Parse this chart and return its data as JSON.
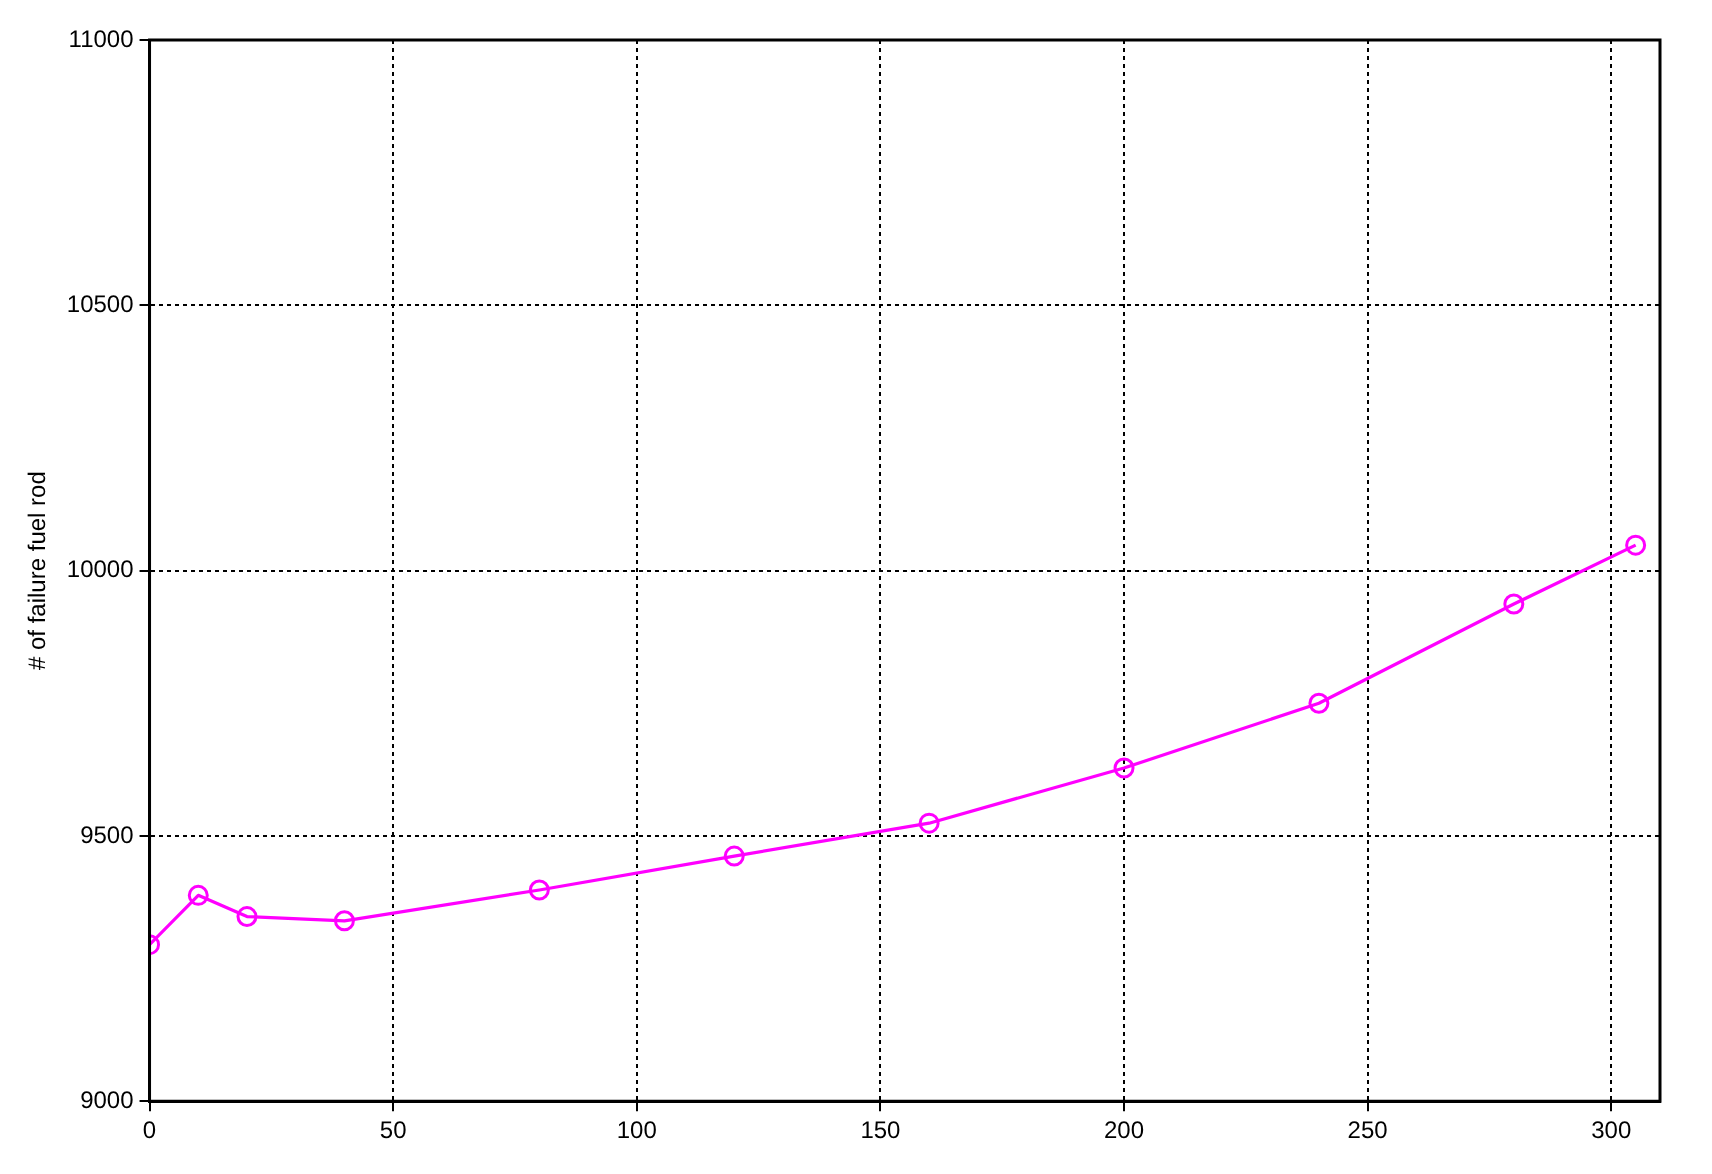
{
  "chart_data": {
    "type": "line",
    "ylabel": "# of failure fuel rod",
    "x": [
      0,
      10,
      20,
      40,
      80,
      120,
      160,
      200,
      240,
      280,
      305
    ],
    "series": [
      {
        "color": "#ff00ff",
        "values": [
          9295,
          9388,
          9348,
          9340,
          9398,
          9462,
          9524,
          9628,
          9750,
          9937,
          10048
        ]
      }
    ],
    "xlim": [
      0,
      310
    ],
    "xticks": [
      0,
      50,
      100,
      150,
      200,
      250,
      300
    ],
    "ylim": [
      9000,
      11000
    ],
    "yticks": [
      9000,
      9500,
      10000,
      10500,
      11000
    ],
    "grid": true,
    "legend": false,
    "marker": "circle",
    "line_style": "solid"
  }
}
